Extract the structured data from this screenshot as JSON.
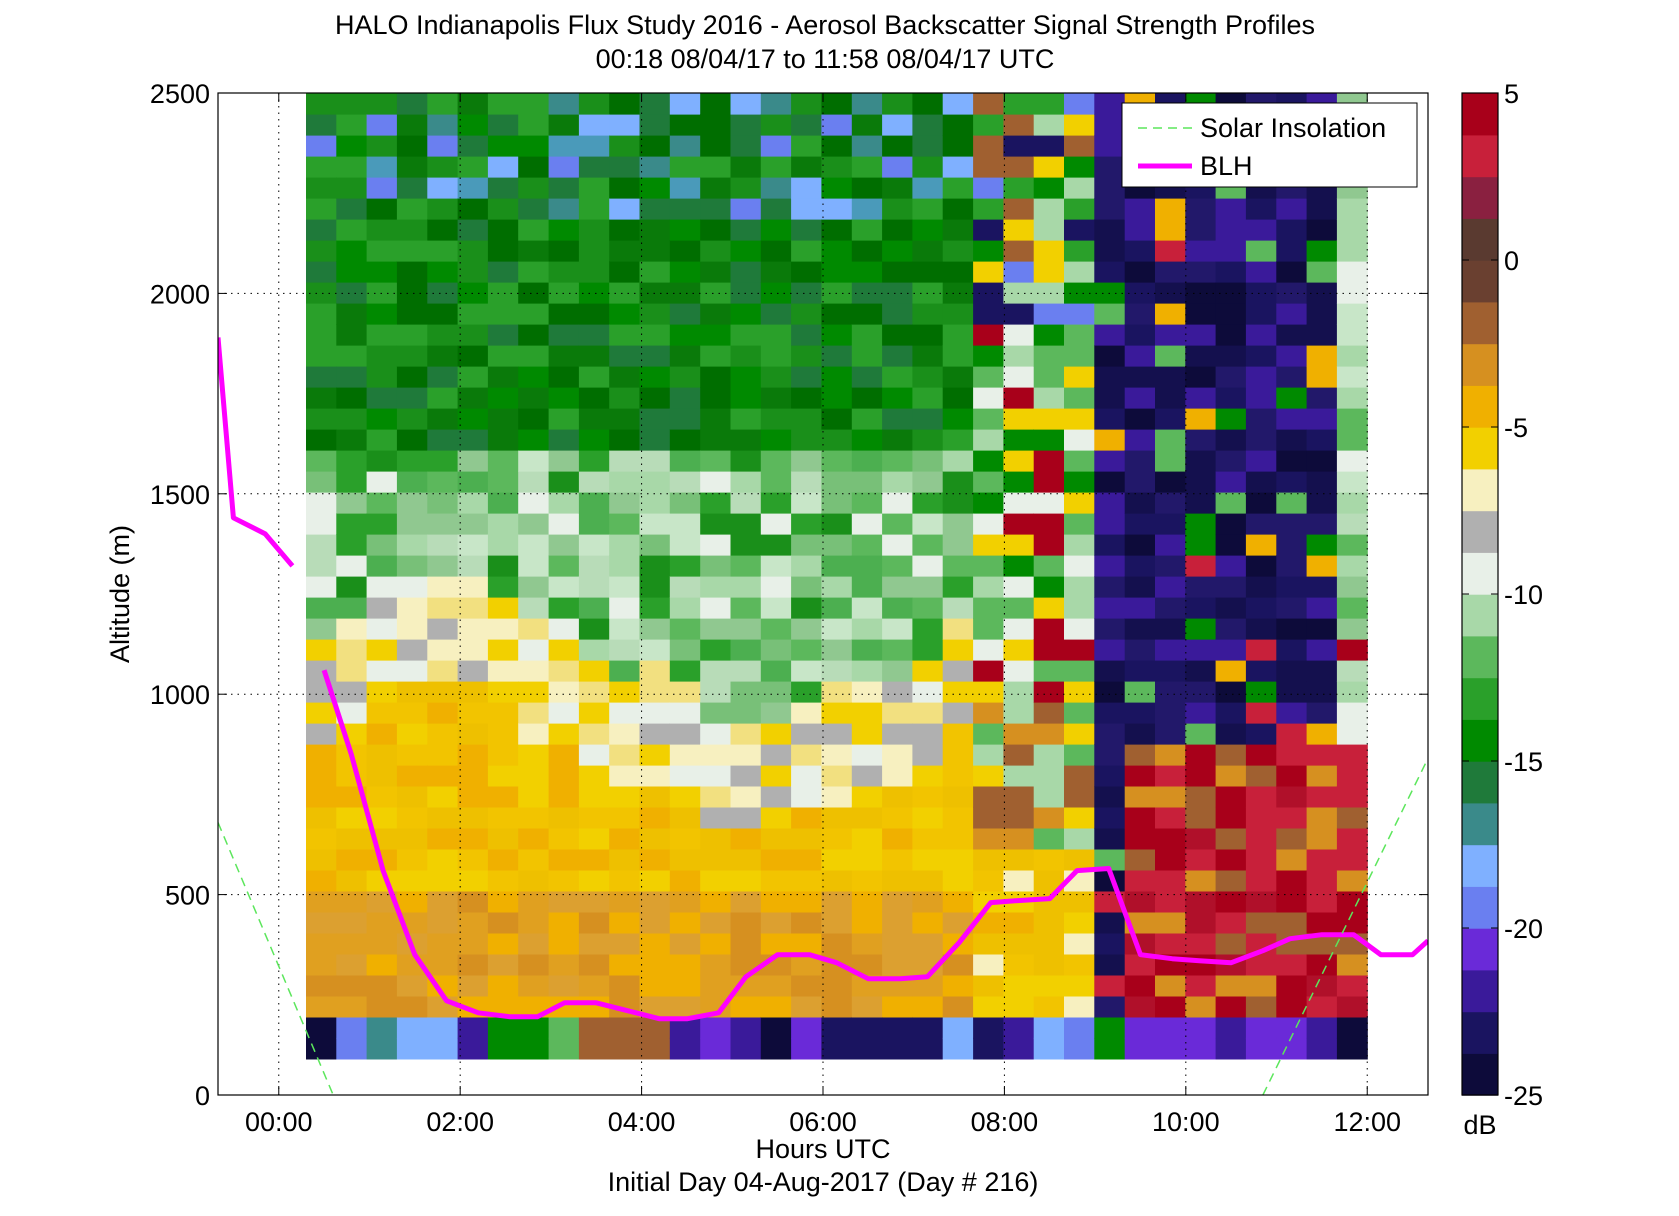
{
  "chart_data": {
    "type": "heatmap",
    "title": "HALO Indianapolis Flux Study 2016 - Aerosol Backscatter Signal Strength Profiles",
    "subtitle": "00:18 08/04/17 to 11:58 08/04/17  UTC",
    "xlabel": "Hours UTC",
    "xlabel2": "Initial Day 04-Aug-2017 (Day # 216)",
    "ylabel": "Altitude (m)",
    "xlim": [
      -0.67,
      12.67
    ],
    "ylim": [
      0,
      2500
    ],
    "grid": true,
    "x_ticks": [
      0,
      2,
      4,
      6,
      8,
      10,
      12
    ],
    "x_tick_labels": [
      "00:00",
      "02:00",
      "04:00",
      "06:00",
      "08:00",
      "10:00",
      "12:00"
    ],
    "y_ticks": [
      0,
      500,
      1000,
      1500,
      2000,
      2500
    ],
    "y_tick_labels": [
      "0",
      "500",
      "1000",
      "1500",
      "2000",
      "2500"
    ],
    "colorbar": {
      "label": "dB",
      "range": [
        -25,
        5
      ],
      "ticks": [
        5,
        0,
        -5,
        -10,
        -15,
        -20,
        -25
      ],
      "tick_labels": [
        "5",
        "0",
        "-5",
        "-10",
        "-15",
        "-20",
        "-25"
      ],
      "colors": [
        "#0d0b3a",
        "#1a1460",
        "#3a1a9a",
        "#6a2ad8",
        "#6a7ff0",
        "#7fb0ff",
        "#3a8a8a",
        "#1f7a3a",
        "#008a00",
        "#2aa02a",
        "#5cb85c",
        "#a8d8a8",
        "#e8f0e8",
        "#b0b0b0",
        "#f7f0c0",
        "#f2d000",
        "#f0b000",
        "#d69020",
        "#a06030",
        "#6a4030",
        "#5a3a30",
        "#8a2040",
        "#c8203a",
        "#a8001a"
      ]
    },
    "data_time_range_hours": [
      0.3,
      12.0
    ],
    "data_alt_range_m": [
      90,
      2500
    ],
    "legend_position": "top-right",
    "legend": [
      {
        "name": "Solar Insolation",
        "style": "dashed",
        "color": "#5ce65c"
      },
      {
        "name": "BLH",
        "style": "solid",
        "color": "#ff00ff"
      }
    ],
    "series": [
      {
        "name": "BLH",
        "x": [
          -0.67,
          -0.5,
          -0.15,
          0.15,
          null,
          0.5,
          0.8,
          1.15,
          1.5,
          1.85,
          2.2,
          2.55,
          2.85,
          3.15,
          3.5,
          3.85,
          4.2,
          4.5,
          4.85,
          5.15,
          5.5,
          5.85,
          6.15,
          6.5,
          6.85,
          7.15,
          7.5,
          7.85,
          8.15,
          8.5,
          8.8,
          9.15,
          9.5,
          9.85,
          10.15,
          10.5,
          10.85,
          11.15,
          11.5,
          11.85,
          12.15,
          12.5,
          12.67
        ],
        "y": [
          1890,
          1440,
          1400,
          1320,
          null,
          1060,
          850,
          560,
          350,
          235,
          205,
          195,
          195,
          230,
          230,
          210,
          190,
          190,
          205,
          295,
          350,
          350,
          330,
          290,
          290,
          295,
          380,
          480,
          485,
          490,
          560,
          565,
          350,
          340,
          335,
          330,
          360,
          390,
          400,
          400,
          350,
          350,
          385
        ]
      },
      {
        "name": "Solar Insolation",
        "segments": [
          {
            "x": [
              -0.67,
              0.6
            ],
            "y": [
              680,
              0
            ]
          },
          {
            "x": [
              10.85,
              12.67
            ],
            "y": [
              0,
              840
            ]
          }
        ]
      }
    ]
  }
}
